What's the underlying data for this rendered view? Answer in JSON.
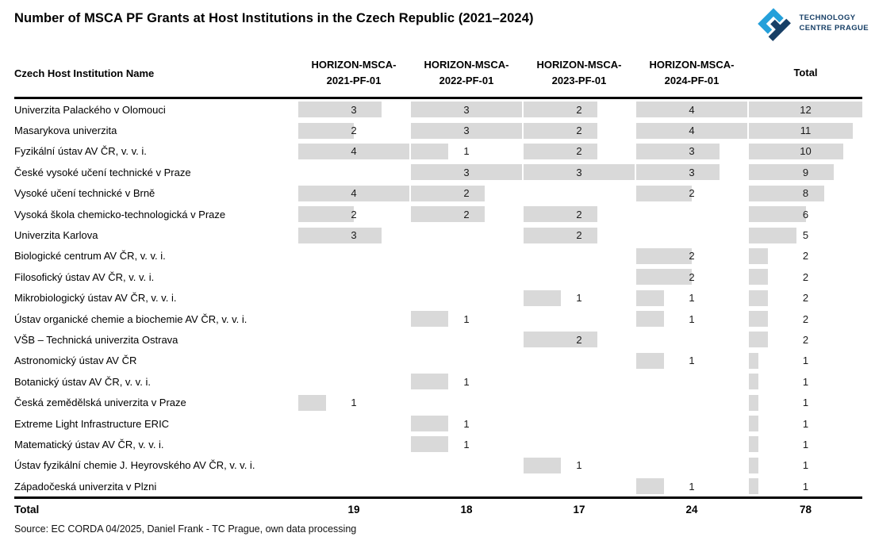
{
  "title": "Number of MSCA PF Grants at Host Institutions in the Czech Republic (2021–2024)",
  "logo": {
    "line1": "TECHNOLOGY",
    "line2": "CENTRE PRAGUE",
    "dark_color": "#173f66",
    "light_color": "#25a0da"
  },
  "table": {
    "name_header": "Czech Host Institution Name",
    "columns": [
      {
        "line1": "HORIZON-MSCA-",
        "line2": "2021-PF-01"
      },
      {
        "line1": "HORIZON-MSCA-",
        "line2": "2022-PF-01"
      },
      {
        "line1": "HORIZON-MSCA-",
        "line2": "2023-PF-01"
      },
      {
        "line1": "HORIZON-MSCA-",
        "line2": "2024-PF-01"
      }
    ],
    "total_header": "Total",
    "totals_label": "Total"
  },
  "chart_data": {
    "type": "table",
    "title": "Number of MSCA PF Grants at Host Institutions in the Czech Republic (2021–2024)",
    "columns": [
      "HORIZON-MSCA-2021-PF-01",
      "HORIZON-MSCA-2022-PF-01",
      "HORIZON-MSCA-2023-PF-01",
      "HORIZON-MSCA-2024-PF-01",
      "Total"
    ],
    "bar_style": "data-bars scaled to column maximum, zero-based",
    "bar_color": "#d9d9d9",
    "column_max": [
      4,
      3,
      3,
      4,
      12
    ],
    "rows": [
      {
        "name": "Univerzita Palackého v Olomouci",
        "values": [
          3,
          3,
          2,
          4
        ],
        "total": 12
      },
      {
        "name": "Masarykova univerzita",
        "values": [
          2,
          3,
          2,
          4
        ],
        "total": 11
      },
      {
        "name": "Fyzikální ústav AV ČR, v. v. i.",
        "values": [
          4,
          1,
          2,
          3
        ],
        "total": 10
      },
      {
        "name": "České vysoké učení technické v Praze",
        "values": [
          0,
          3,
          3,
          3
        ],
        "total": 9
      },
      {
        "name": "Vysoké učení technické v Brně",
        "values": [
          4,
          2,
          0,
          2
        ],
        "total": 8
      },
      {
        "name": "Vysoká škola chemicko-technologická v Praze",
        "values": [
          2,
          2,
          2,
          0
        ],
        "total": 6
      },
      {
        "name": "Univerzita Karlova",
        "values": [
          3,
          0,
          2,
          0
        ],
        "total": 5
      },
      {
        "name": "Biologické centrum AV ČR, v. v. i.",
        "values": [
          0,
          0,
          0,
          2
        ],
        "total": 2
      },
      {
        "name": "Filosofický ústav AV ČR, v. v. i.",
        "values": [
          0,
          0,
          0,
          2
        ],
        "total": 2
      },
      {
        "name": "Mikrobiologický ústav AV ČR, v. v. i.",
        "values": [
          0,
          0,
          1,
          1
        ],
        "total": 2
      },
      {
        "name": "Ústav organické chemie a biochemie AV ČR, v. v. i.",
        "values": [
          0,
          1,
          0,
          1
        ],
        "total": 2
      },
      {
        "name": "VŠB – Technická univerzita Ostrava",
        "values": [
          0,
          0,
          2,
          0
        ],
        "total": 2
      },
      {
        "name": "Astronomický ústav AV ČR",
        "values": [
          0,
          0,
          0,
          1
        ],
        "total": 1
      },
      {
        "name": "Botanický ústav AV ČR, v. v. i.",
        "values": [
          0,
          1,
          0,
          0
        ],
        "total": 1
      },
      {
        "name": "Česká zemědělská univerzita v Praze",
        "values": [
          1,
          0,
          0,
          0
        ],
        "total": 1
      },
      {
        "name": "Extreme Light Infrastructure ERIC",
        "values": [
          0,
          1,
          0,
          0
        ],
        "total": 1
      },
      {
        "name": "Matematický ústav AV ČR, v. v. i.",
        "values": [
          0,
          1,
          0,
          0
        ],
        "total": 1
      },
      {
        "name": "Ústav fyzikální chemie J. Heyrovského AV ČR, v. v. i.",
        "values": [
          0,
          0,
          1,
          0
        ],
        "total": 1
      },
      {
        "name": "Západočeská univerzita v Plzni",
        "values": [
          0,
          0,
          0,
          1
        ],
        "total": 1
      }
    ],
    "column_totals": [
      19,
      18,
      17,
      24
    ],
    "grand_total": 78
  },
  "source": "Source: EC CORDA 04/2025, Daniel Frank - TC Prague, own data processing"
}
